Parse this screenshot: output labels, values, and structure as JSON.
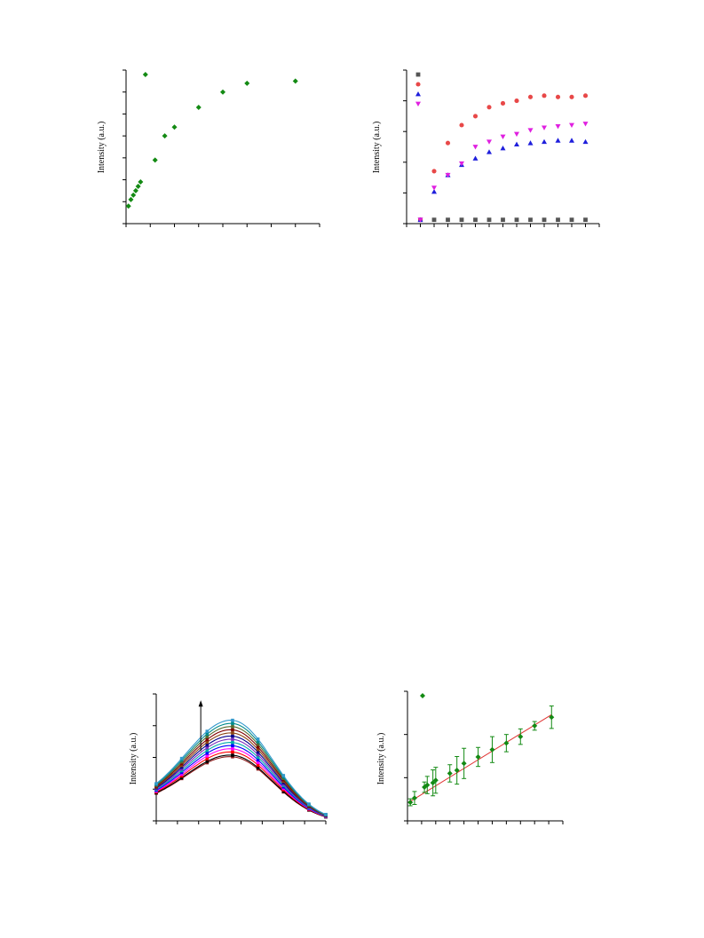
{
  "chart_data": [
    {
      "id": "plot-a",
      "type": "scatter",
      "title": "",
      "xlabel": "",
      "ylabel": "Intensity (a.u.)",
      "xlim": [
        0,
        40
      ],
      "ylim": [
        0,
        70
      ],
      "grid": false,
      "legend": "none",
      "series": [
        {
          "color": "#138a13",
          "marker": "diamond",
          "x": [
            0.5,
            1,
            1.5,
            2,
            2.5,
            3,
            4,
            6,
            8,
            10,
            15,
            20,
            25,
            35
          ],
          "y": [
            8,
            11,
            13,
            15,
            17,
            19,
            68,
            29,
            40,
            44,
            53,
            60,
            64,
            65
          ]
        }
      ]
    },
    {
      "id": "plot-b",
      "type": "scatter",
      "title": "",
      "xlabel": "",
      "ylabel": "Intensity (a.u.)",
      "xlim": [
        0,
        14
      ],
      "ylim": [
        0,
        120
      ],
      "grid": false,
      "legend": "top-left",
      "series": [
        {
          "color": "#555555",
          "marker": "square",
          "x": [
            1,
            2,
            3,
            4,
            5,
            6,
            7,
            8,
            9,
            10,
            11,
            12,
            13
          ],
          "y": [
            3,
            3,
            3,
            3,
            3,
            3,
            3,
            3,
            3,
            3,
            3,
            3,
            3
          ]
        },
        {
          "color": "#e84848",
          "marker": "circle",
          "x": [
            1,
            2,
            3,
            4,
            5,
            6,
            7,
            8,
            9,
            10,
            11,
            12,
            13
          ],
          "y": [
            3,
            41,
            63,
            77,
            84,
            91,
            94,
            96,
            99,
            100,
            99,
            99,
            100
          ]
        },
        {
          "color": "#1f1fdc",
          "marker": "triangle-up",
          "x": [
            1,
            2,
            3,
            4,
            5,
            6,
            7,
            8,
            9,
            10,
            11,
            12,
            13
          ],
          "y": [
            3,
            25,
            38,
            46,
            51,
            56,
            59,
            62,
            63,
            64,
            65,
            65,
            64
          ]
        },
        {
          "color": "#e020e0",
          "marker": "triangle-down",
          "x": [
            1,
            2,
            3,
            4,
            5,
            6,
            7,
            8,
            9,
            10,
            11,
            12,
            13
          ],
          "y": [
            3,
            28,
            38,
            47,
            60,
            64,
            68,
            70,
            73,
            75,
            76,
            77,
            78
          ]
        }
      ]
    },
    {
      "id": "plot-c",
      "type": "line",
      "title": "",
      "xlabel": "",
      "ylabel": "Intensity (a.u.)",
      "xlim": [
        0,
        8
      ],
      "ylim": [
        0,
        40
      ],
      "grid": false,
      "legend": "none",
      "x": [
        0,
        1.2,
        2.4,
        3.6,
        4.8,
        6,
        7.2,
        8
      ],
      "peak_x": 3.6,
      "arrow": "up",
      "series": [
        {
          "color": "#8b1a1a",
          "peak": 22
        },
        {
          "color": "#000000",
          "peak": 22.5
        },
        {
          "color": "#ff0000",
          "peak": 23.5
        },
        {
          "color": "#ff00ff",
          "peak": 24.5
        },
        {
          "color": "#0000ff",
          "peak": 25.5
        },
        {
          "color": "#00aaaa",
          "peak": 26.5
        },
        {
          "color": "#7b2fbe",
          "peak": 27.5
        },
        {
          "color": "#00008b",
          "peak": 28.5
        },
        {
          "color": "#8b4513",
          "peak": 29.5
        },
        {
          "color": "#800000",
          "peak": 30.5
        },
        {
          "color": "#556b2f",
          "peak": 31.5
        },
        {
          "color": "#008b8b",
          "peak": 32.5
        },
        {
          "color": "#3399cc",
          "peak": 33.5
        }
      ]
    },
    {
      "id": "plot-d",
      "type": "scatter",
      "title": "",
      "xlabel": "",
      "ylabel": "Intensity (a.u.)",
      "xlim": [
        0,
        11
      ],
      "ylim": [
        0,
        30
      ],
      "grid": false,
      "legend": "top-left",
      "fit_line": {
        "color": "#e03030",
        "x": [
          0.2,
          10.2
        ],
        "y": [
          4.5,
          24.6
        ]
      },
      "series": [
        {
          "color": "#138a13",
          "marker": "diamond",
          "x": [
            0.2,
            0.5,
            1.2,
            1.4,
            1.8,
            2.0,
            3.0,
            3.5,
            4.0,
            5.0,
            6.0,
            7.0,
            8.0,
            9.0,
            10.2
          ],
          "y": [
            4.3,
            5.3,
            7.8,
            8.3,
            8.8,
            9.4,
            11.0,
            11.7,
            13.3,
            14.8,
            16.5,
            18.0,
            19.5,
            22.0,
            24.0
          ],
          "err": [
            0.8,
            1.5,
            1.2,
            2.0,
            3.0,
            3.0,
            2.0,
            3.2,
            3.5,
            2.2,
            3.0,
            2.0,
            1.8,
            1.0,
            2.6
          ]
        }
      ]
    }
  ]
}
